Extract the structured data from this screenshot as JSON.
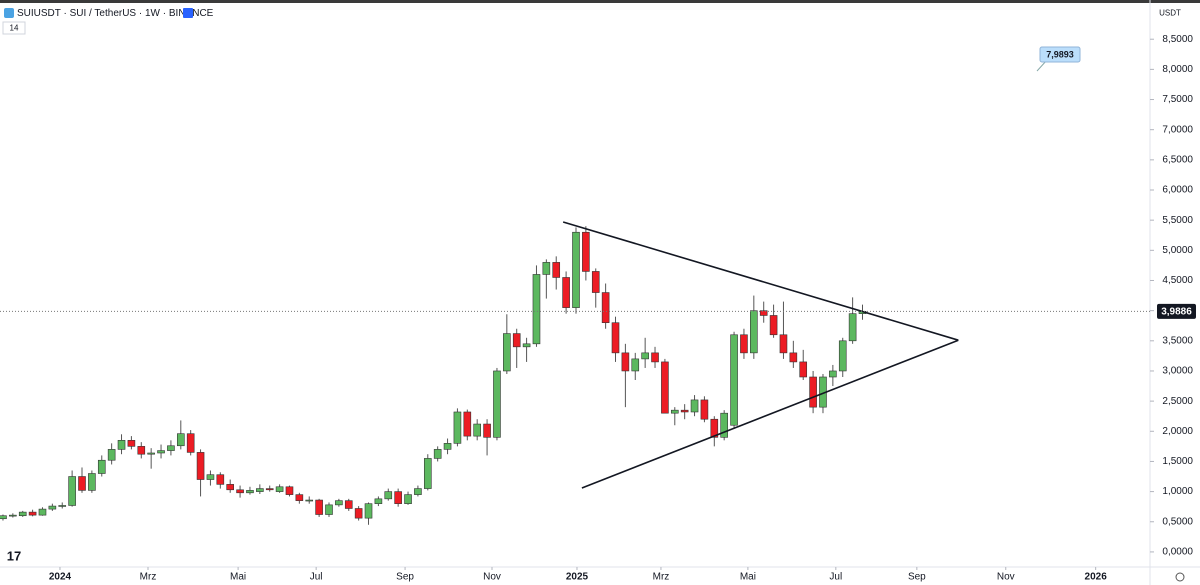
{
  "chart_data": {
    "type": "candlestick",
    "title": "SUIUSDT · SUI / TetherUS · 1W · BINANCE",
    "indicator_label": "14",
    "currency": "USDT",
    "annotation": "7,9893",
    "up_color": "#5cb85f",
    "down_color": "#ec1c24",
    "grid": false,
    "categories": [
      null,
      null,
      null,
      null,
      null,
      null,
      null,
      null,
      null,
      null,
      null,
      null,
      null,
      null,
      null,
      null,
      null,
      null,
      null,
      null,
      null,
      null,
      null,
      null,
      null,
      null,
      null,
      null,
      null,
      null,
      null,
      null,
      null,
      null,
      null,
      null,
      null,
      null,
      null,
      null,
      null,
      null,
      null,
      null,
      null,
      null,
      null,
      null,
      null,
      null,
      null,
      null,
      null,
      null,
      null,
      null,
      null,
      null,
      null,
      null,
      null,
      null,
      null,
      null,
      null,
      null,
      null,
      null,
      null,
      null,
      null,
      null,
      null,
      null,
      null,
      null,
      null,
      null,
      null,
      null,
      null,
      null,
      null,
      null,
      null,
      null,
      null,
      null
    ],
    "open": [
      0.55,
      0.6,
      0.6,
      0.66,
      0.61,
      0.71,
      0.76,
      0.77,
      1.25,
      1.02,
      1.3,
      1.52,
      1.7,
      1.85,
      1.75,
      1.62,
      1.64,
      1.68,
      1.76,
      1.96,
      1.65,
      1.2,
      1.28,
      1.12,
      1.03,
      0.98,
      1.0,
      1.05,
      1.0,
      1.08,
      0.95,
      0.85,
      0.86,
      0.62,
      0.78,
      0.85,
      0.72,
      0.56,
      0.8,
      0.88,
      1.0,
      0.8,
      0.95,
      1.05,
      1.55,
      1.7,
      1.8,
      2.32,
      1.92,
      2.12,
      1.9,
      3.0,
      3.62,
      3.4,
      3.45,
      4.6,
      4.8,
      4.55,
      4.05,
      5.3,
      4.65,
      4.3,
      3.8,
      3.3,
      3.0,
      3.2,
      3.3,
      3.15,
      2.3,
      2.35,
      2.32,
      2.52,
      2.2,
      1.9,
      2.1,
      3.6,
      3.3,
      4.0,
      3.92,
      3.6,
      3.3,
      3.15,
      2.9,
      2.4,
      2.9,
      3.0,
      3.5,
      3.95
    ],
    "high": [
      0.62,
      0.64,
      0.68,
      0.7,
      0.74,
      0.8,
      0.82,
      1.35,
      1.4,
      1.35,
      1.6,
      1.8,
      1.95,
      1.92,
      1.82,
      1.72,
      1.78,
      1.85,
      2.18,
      2.02,
      1.7,
      1.35,
      1.32,
      1.2,
      1.1,
      1.08,
      1.12,
      1.1,
      1.12,
      1.1,
      0.98,
      0.92,
      0.88,
      0.82,
      0.88,
      0.88,
      0.76,
      0.82,
      0.92,
      1.05,
      1.05,
      1.0,
      1.1,
      1.62,
      1.75,
      1.88,
      2.38,
      2.36,
      2.2,
      2.2,
      3.05,
      3.94,
      3.7,
      3.55,
      4.75,
      4.85,
      4.9,
      4.65,
      5.38,
      5.4,
      4.7,
      4.45,
      3.9,
      3.45,
      3.3,
      3.55,
      3.4,
      3.2,
      2.4,
      2.45,
      2.6,
      2.58,
      2.25,
      2.35,
      3.65,
      3.7,
      4.25,
      4.15,
      4.1,
      4.15,
      3.5,
      3.35,
      3.0,
      2.95,
      3.1,
      3.55,
      4.22,
      4.1
    ],
    "low": [
      0.52,
      0.57,
      0.58,
      0.59,
      0.6,
      0.68,
      0.72,
      0.75,
      0.98,
      0.98,
      1.25,
      1.45,
      1.62,
      1.7,
      1.55,
      1.38,
      1.55,
      1.6,
      1.7,
      1.6,
      0.92,
      1.1,
      1.05,
      0.98,
      0.9,
      0.95,
      0.96,
      1.0,
      0.98,
      0.92,
      0.8,
      0.8,
      0.58,
      0.58,
      0.75,
      0.68,
      0.52,
      0.45,
      0.76,
      0.85,
      0.75,
      0.78,
      0.92,
      1.02,
      1.5,
      1.62,
      1.75,
      1.85,
      1.85,
      1.6,
      1.85,
      2.95,
      3.05,
      3.15,
      3.4,
      4.2,
      4.35,
      3.95,
      3.95,
      4.5,
      4.05,
      3.7,
      3.15,
      2.4,
      2.85,
      3.05,
      3.05,
      2.3,
      2.1,
      2.2,
      2.25,
      2.15,
      1.75,
      1.85,
      2.05,
      3.2,
      3.2,
      3.8,
      3.55,
      3.2,
      3.05,
      2.85,
      2.3,
      2.3,
      2.75,
      2.9,
      3.45,
      3.85
    ],
    "close": [
      0.6,
      0.61,
      0.66,
      0.61,
      0.71,
      0.76,
      0.77,
      1.25,
      1.02,
      1.3,
      1.52,
      1.7,
      1.85,
      1.75,
      1.62,
      1.64,
      1.68,
      1.76,
      1.96,
      1.65,
      1.2,
      1.28,
      1.12,
      1.03,
      0.98,
      1.02,
      1.05,
      1.03,
      1.08,
      0.95,
      0.85,
      0.86,
      0.62,
      0.78,
      0.85,
      0.72,
      0.56,
      0.8,
      0.88,
      1.0,
      0.8,
      0.95,
      1.05,
      1.55,
      1.7,
      1.8,
      2.32,
      1.92,
      2.12,
      1.9,
      3.0,
      3.62,
      3.4,
      3.45,
      4.6,
      4.8,
      4.55,
      4.05,
      5.3,
      4.65,
      4.3,
      3.8,
      3.3,
      3.0,
      3.2,
      3.3,
      3.15,
      2.3,
      2.35,
      2.32,
      2.52,
      2.2,
      1.9,
      2.3,
      3.6,
      3.3,
      4.0,
      3.92,
      3.6,
      3.3,
      3.15,
      2.9,
      2.4,
      2.9,
      3.0,
      3.5,
      3.95,
      3.9886
    ],
    "last_price": {
      "value": 3.9886,
      "label": "3,9886"
    },
    "trendlines": [
      {
        "x": [
          56.7,
          96.7
        ],
        "y": [
          5.47,
          3.51
        ]
      },
      {
        "x": [
          58.6,
          96.7
        ],
        "y": [
          1.06,
          3.51
        ]
      }
    ],
    "xlim": [
      -0.3,
      116.1
    ],
    "xticks": [
      {
        "value": 5.77,
        "label": "2024"
      },
      {
        "value": 14.68,
        "label": "Mrz"
      },
      {
        "value": 23.8,
        "label": "Mai"
      },
      {
        "value": 31.7,
        "label": "Jul"
      },
      {
        "value": 40.7,
        "label": "Sep"
      },
      {
        "value": 49.5,
        "label": "Nov"
      },
      {
        "value": 58.1,
        "label": "2025"
      },
      {
        "value": 66.6,
        "label": "Mrz"
      },
      {
        "value": 75.4,
        "label": "Mai"
      },
      {
        "value": 84.3,
        "label": "Jul"
      },
      {
        "value": 92.5,
        "label": "Sep"
      },
      {
        "value": 101.5,
        "label": "Nov"
      },
      {
        "value": 110.6,
        "label": "2026"
      }
    ],
    "ylim": [
      -0.25,
      9.15
    ],
    "yticks": [
      {
        "value": 0,
        "label": "0,0000"
      },
      {
        "value": 0.5,
        "label": "0,5000"
      },
      {
        "value": 1,
        "label": "1,0000"
      },
      {
        "value": 1.5,
        "label": "1,5000"
      },
      {
        "value": 2,
        "label": "2,0000"
      },
      {
        "value": 2.5,
        "label": "2,5000"
      },
      {
        "value": 3,
        "label": "3,0000"
      },
      {
        "value": 3.5,
        "label": "3,5000"
      },
      {
        "value": 4,
        "label": "4,0000"
      },
      {
        "value": 4.5,
        "label": "4,5000"
      },
      {
        "value": 5,
        "label": "5,0000"
      },
      {
        "value": 5.5,
        "label": "5,5000"
      },
      {
        "value": 6,
        "label": "6,0000"
      },
      {
        "value": 6.5,
        "label": "6,5000"
      },
      {
        "value": 7,
        "label": "7,0000"
      },
      {
        "value": 7.5,
        "label": "7,5000"
      },
      {
        "value": 8,
        "label": "8,0000"
      },
      {
        "value": 8.5,
        "label": "8,5000"
      }
    ]
  }
}
